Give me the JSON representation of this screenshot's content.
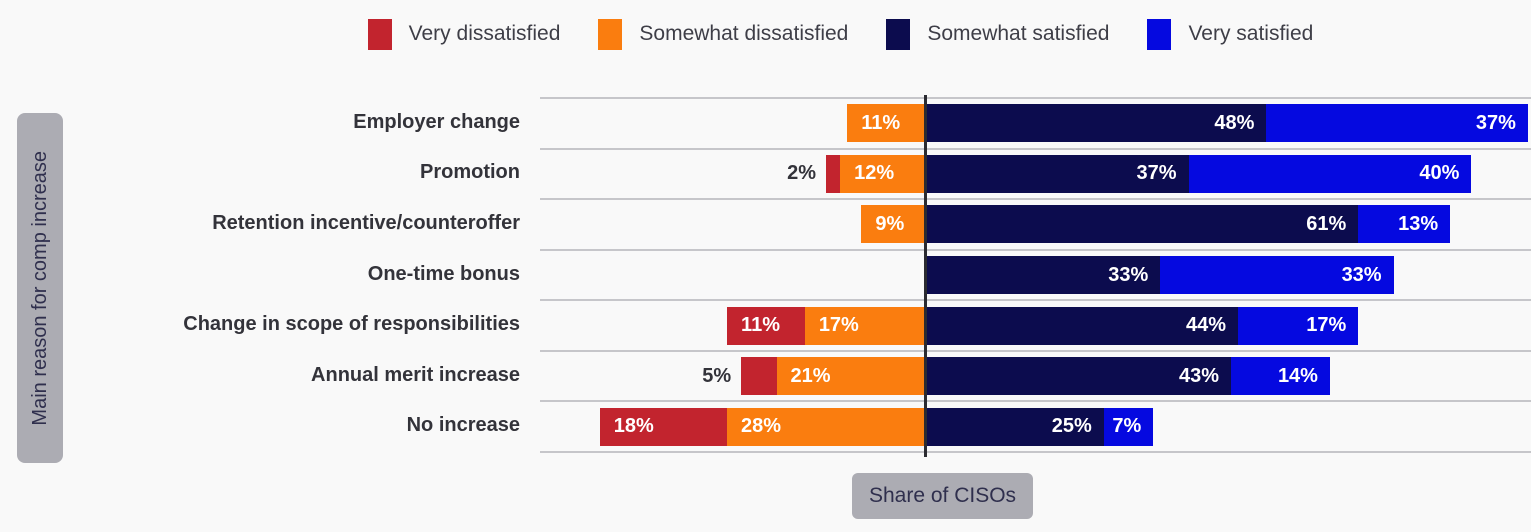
{
  "legend": [
    {
      "label": "Very dissatisfied",
      "color": "#c2242e"
    },
    {
      "label": "Somewhat dissatisfied",
      "color": "#fa7d0f"
    },
    {
      "label": "Somewhat satisfied",
      "color": "#0c0c4e"
    },
    {
      "label": "Very satisfied",
      "color": "#0509e0"
    }
  ],
  "y_axis_label": "Main reason for comp increase",
  "x_axis_label": "Share of CISOs",
  "colors": {
    "very_dissatisfied": "#c2242e",
    "somewhat_dissatisfied": "#fa7d0f",
    "somewhat_satisfied": "#0c0c4e",
    "very_satisfied": "#0509e0",
    "gridline": "#c6c6ca",
    "axis_line": "#2b2b31",
    "badge_bg": "#acacb3",
    "badge_text": "#2f2f4d"
  },
  "chart_data": {
    "type": "bar",
    "variant": "diverging-stacked-horizontal",
    "unit": "%",
    "title": "",
    "xlabel": "Share of CISOs",
    "ylabel": "Main reason for comp increase",
    "legend_position": "top",
    "grid": "horizontal-row-separators",
    "categories": [
      "Employer change",
      "Promotion",
      "Retention incentive/counteroffer",
      "One-time bonus",
      "Change in scope of responsibilities",
      "Annual merit increase",
      "No increase"
    ],
    "series": [
      {
        "name": "Very dissatisfied",
        "side": "left",
        "values": [
          0,
          2,
          0,
          0,
          11,
          5,
          18
        ]
      },
      {
        "name": "Somewhat dissatisfied",
        "side": "left",
        "values": [
          11,
          12,
          9,
          0,
          17,
          21,
          28
        ]
      },
      {
        "name": "Somewhat satisfied",
        "side": "right",
        "values": [
          48,
          37,
          61,
          33,
          44,
          43,
          25
        ]
      },
      {
        "name": "Very satisfied",
        "side": "right",
        "values": [
          37,
          40,
          13,
          33,
          17,
          14,
          7
        ]
      }
    ]
  }
}
